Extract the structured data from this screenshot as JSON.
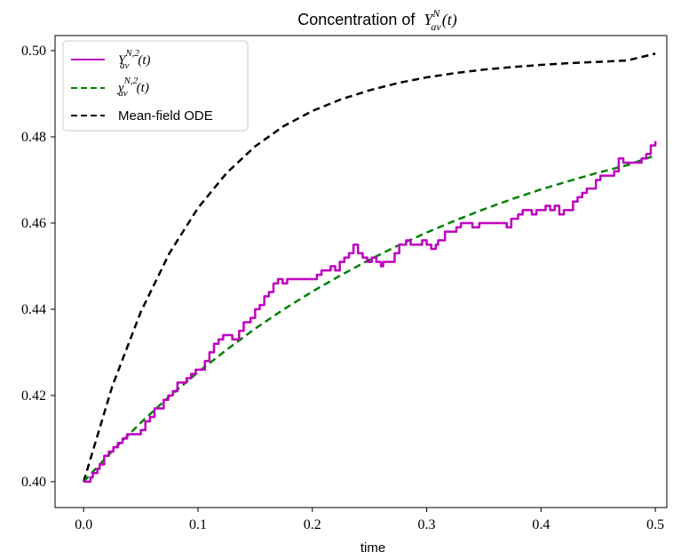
{
  "chart_data": {
    "type": "line",
    "title": "Concentration of Y_av^N(t)",
    "title_parts": {
      "prefix": "Concentration of",
      "var": "Y",
      "sub": "av",
      "sup": "N",
      "arg": "(t)"
    },
    "xlabel": "time",
    "ylabel": "",
    "xlim": [
      -0.025,
      0.51
    ],
    "ylim": [
      0.394,
      0.5035
    ],
    "xticks": [
      0.0,
      0.1,
      0.2,
      0.3,
      0.4,
      0.5
    ],
    "xtick_labels": [
      "0.0",
      "0.1",
      "0.2",
      "0.3",
      "0.4",
      "0.5"
    ],
    "yticks": [
      0.4,
      0.42,
      0.44,
      0.46,
      0.48,
      0.5
    ],
    "ytick_labels": [
      "0.40",
      "0.42",
      "0.44",
      "0.46",
      "0.48",
      "0.50"
    ],
    "grid": false,
    "legend_position": "top-left",
    "series": [
      {
        "name": "Y_av^{N,2}(t)",
        "legend": {
          "var": "Y",
          "sub": "av",
          "sup": "N,2",
          "arg": "(t)"
        },
        "color": "#bf00bf",
        "style": "solid",
        "step": true,
        "x": [
          0.0,
          0.006,
          0.008,
          0.012,
          0.014,
          0.018,
          0.022,
          0.026,
          0.03,
          0.034,
          0.038,
          0.044,
          0.05,
          0.054,
          0.058,
          0.062,
          0.066,
          0.07,
          0.074,
          0.078,
          0.082,
          0.086,
          0.09,
          0.094,
          0.098,
          0.102,
          0.106,
          0.11,
          0.114,
          0.118,
          0.122,
          0.126,
          0.13,
          0.136,
          0.14,
          0.146,
          0.15,
          0.154,
          0.158,
          0.162,
          0.166,
          0.17,
          0.174,
          0.178,
          0.182,
          0.186,
          0.2,
          0.204,
          0.208,
          0.212,
          0.216,
          0.22,
          0.224,
          0.228,
          0.232,
          0.236,
          0.24,
          0.244,
          0.248,
          0.252,
          0.256,
          0.26,
          0.262,
          0.268,
          0.272,
          0.276,
          0.282,
          0.286,
          0.292,
          0.296,
          0.3,
          0.304,
          0.308,
          0.31,
          0.316,
          0.32,
          0.326,
          0.33,
          0.336,
          0.34,
          0.346,
          0.352,
          0.356,
          0.36,
          0.364,
          0.37,
          0.374,
          0.38,
          0.384,
          0.388,
          0.392,
          0.396,
          0.4,
          0.404,
          0.408,
          0.412,
          0.416,
          0.42,
          0.424,
          0.428,
          0.432,
          0.436,
          0.44,
          0.444,
          0.448,
          0.452,
          0.456,
          0.46,
          0.464,
          0.468,
          0.472,
          0.476,
          0.48,
          0.484,
          0.488,
          0.492,
          0.496,
          0.5
        ],
        "y": [
          0.4,
          0.401,
          0.402,
          0.403,
          0.404,
          0.406,
          0.407,
          0.408,
          0.409,
          0.41,
          0.411,
          0.411,
          0.412,
          0.414,
          0.415,
          0.417,
          0.417,
          0.419,
          0.42,
          0.421,
          0.423,
          0.423,
          0.424,
          0.425,
          0.426,
          0.426,
          0.428,
          0.43,
          0.432,
          0.433,
          0.434,
          0.434,
          0.433,
          0.435,
          0.437,
          0.438,
          0.44,
          0.441,
          0.443,
          0.444,
          0.446,
          0.447,
          0.446,
          0.447,
          0.447,
          0.447,
          0.447,
          0.448,
          0.449,
          0.449,
          0.45,
          0.449,
          0.451,
          0.452,
          0.453,
          0.455,
          0.453,
          0.452,
          0.451,
          0.452,
          0.451,
          0.45,
          0.451,
          0.451,
          0.453,
          0.455,
          0.456,
          0.455,
          0.455,
          0.456,
          0.455,
          0.454,
          0.455,
          0.456,
          0.458,
          0.458,
          0.459,
          0.46,
          0.46,
          0.459,
          0.46,
          0.46,
          0.46,
          0.46,
          0.46,
          0.459,
          0.461,
          0.462,
          0.463,
          0.463,
          0.462,
          0.463,
          0.463,
          0.464,
          0.463,
          0.464,
          0.462,
          0.463,
          0.463,
          0.465,
          0.466,
          0.467,
          0.468,
          0.468,
          0.47,
          0.471,
          0.471,
          0.471,
          0.472,
          0.475,
          0.474,
          0.474,
          0.474,
          0.474,
          0.475,
          0.476,
          0.478,
          0.479
        ]
      },
      {
        "name": "y_av^{N,2}(t)",
        "legend": {
          "var": "y",
          "sub": "av",
          "sup": "N,2",
          "arg": "(t)"
        },
        "color": "#008000",
        "style": "dashed",
        "x": [
          0.0,
          0.025,
          0.05,
          0.075,
          0.1,
          0.125,
          0.15,
          0.175,
          0.2,
          0.225,
          0.25,
          0.275,
          0.3,
          0.325,
          0.35,
          0.375,
          0.4,
          0.425,
          0.45,
          0.475,
          0.5
        ],
        "y": [
          0.4,
          0.4071,
          0.4137,
          0.4198,
          0.4254,
          0.4306,
          0.4355,
          0.44,
          0.4441,
          0.4479,
          0.4515,
          0.4548,
          0.4578,
          0.4606,
          0.4632,
          0.4656,
          0.4678,
          0.4698,
          0.4717,
          0.4734,
          0.4757
        ]
      },
      {
        "name": "Mean-field ODE",
        "legend": {
          "text": "Mean-field ODE"
        },
        "color": "#000000",
        "style": "dashed",
        "x": [
          0.0,
          0.025,
          0.05,
          0.075,
          0.1,
          0.125,
          0.15,
          0.175,
          0.2,
          0.225,
          0.25,
          0.275,
          0.3,
          0.325,
          0.35,
          0.375,
          0.4,
          0.425,
          0.45,
          0.475,
          0.5
        ],
        "y": [
          0.4,
          0.4221,
          0.4394,
          0.453,
          0.4635,
          0.4716,
          0.4778,
          0.4825,
          0.486,
          0.4887,
          0.4908,
          0.4925,
          0.4938,
          0.4948,
          0.4956,
          0.4962,
          0.4967,
          0.4971,
          0.4974,
          0.4977,
          0.4993
        ]
      }
    ]
  }
}
